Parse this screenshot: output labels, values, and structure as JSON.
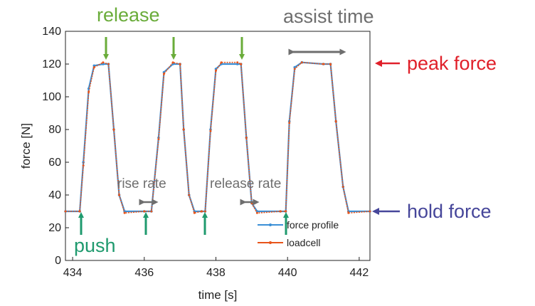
{
  "chart_data": {
    "type": "line",
    "title": "",
    "xlabel": "time [s]",
    "ylabel": "force [N]",
    "xlim": [
      433.8,
      442.3
    ],
    "ylim": [
      0,
      140
    ],
    "xticks": [
      434,
      436,
      438,
      440,
      442
    ],
    "yticks": [
      0,
      20,
      40,
      60,
      80,
      100,
      120,
      140
    ],
    "grid": false,
    "legend_position": "lower-right",
    "series": [
      {
        "name": "force profile",
        "color": "#3b8fd6",
        "x": [
          433.8,
          434.2,
          434.3,
          434.45,
          434.6,
          434.85,
          435.0,
          435.15,
          435.3,
          435.45,
          436.0,
          436.2,
          436.4,
          436.55,
          436.8,
          437.0,
          437.1,
          437.25,
          437.4,
          437.6,
          437.7,
          437.85,
          438.0,
          438.15,
          438.6,
          438.7,
          438.85,
          439.0,
          439.15,
          439.8,
          439.95,
          440.05,
          440.2,
          440.4,
          441.0,
          441.2,
          441.35,
          441.55,
          441.7,
          442.3
        ],
        "y": [
          30,
          30,
          60,
          105,
          119,
          120,
          120,
          80,
          40,
          30,
          30,
          30,
          75,
          115,
          120,
          120,
          80,
          40,
          30,
          30,
          30,
          80,
          117,
          120,
          120,
          120,
          75,
          35,
          30,
          30,
          30,
          85,
          118,
          121,
          120,
          120,
          85,
          45,
          30,
          30
        ]
      },
      {
        "name": "loadcell",
        "color": "#e8541a",
        "x": [
          433.8,
          434.2,
          434.3,
          434.45,
          434.6,
          434.85,
          435.0,
          435.15,
          435.3,
          435.45,
          436.0,
          436.2,
          436.4,
          436.55,
          436.8,
          437.0,
          437.1,
          437.25,
          437.4,
          437.6,
          437.7,
          437.85,
          438.0,
          438.15,
          438.6,
          438.7,
          438.85,
          439.0,
          439.15,
          439.8,
          439.95,
          440.05,
          440.2,
          440.4,
          441.0,
          441.2,
          441.35,
          441.55,
          441.7,
          442.3
        ],
        "y": [
          30,
          30,
          58,
          103,
          118,
          121,
          120,
          80,
          40,
          29,
          30,
          30,
          74,
          114,
          121,
          120,
          80,
          40,
          29,
          30,
          30,
          79,
          116,
          121,
          121,
          120,
          75,
          35,
          29,
          30,
          30,
          84,
          117,
          121,
          120,
          120,
          85,
          45,
          29,
          30
        ]
      }
    ],
    "annotations": [
      {
        "text": "release",
        "color": "#6aac3a"
      },
      {
        "text": "assist time",
        "color": "#6e6e6e"
      },
      {
        "text": "peak force",
        "color": "#e0202a"
      },
      {
        "text": "rise rate",
        "color": "#6e6e6e"
      },
      {
        "text": "release rate",
        "color": "#6e6e6e"
      },
      {
        "text": "hold force",
        "color": "#46469a"
      },
      {
        "text": "push",
        "color": "#1f9a6e"
      }
    ]
  }
}
